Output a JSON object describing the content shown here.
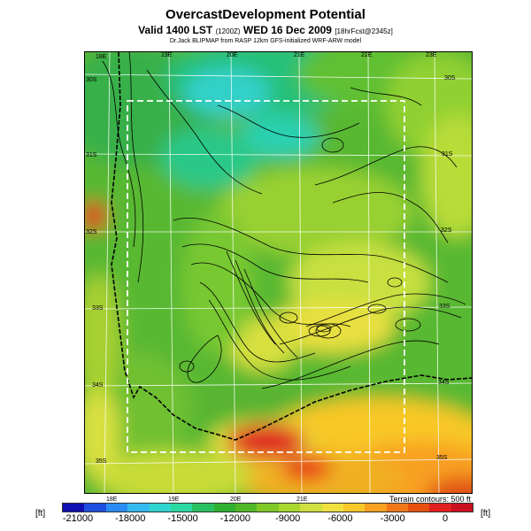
{
  "header": {
    "title": "OvercastDevelopment Potential",
    "valid_prefix": "Valid 1400 LST",
    "valid_code": "(1200Z)",
    "valid_date": "WED 16 Dec 2009",
    "run_info": "[18hrFcst@2345z]",
    "credit": "Dr.Jack BLIPMAP from RASP 12km GFS-initialized WRF-ARW model"
  },
  "map": {
    "lon_labels_top": [
      "18E",
      "19E",
      "20E",
      "21E",
      "22E",
      "23E"
    ],
    "lon_labels_bottom": [
      "18E",
      "19E",
      "20E",
      "21E"
    ],
    "lat_labels_left": [
      "30S",
      "31S",
      "32S",
      "33S",
      "34S",
      "35S"
    ],
    "lat_labels_right": [
      "30S",
      "31S",
      "32S",
      "33S",
      "34S",
      "35S"
    ],
    "terrain_note": "Terrain contours: 500 ft"
  },
  "colorbar": {
    "unit": "[ft]",
    "ticks": [
      "-21000",
      "-18000",
      "-15000",
      "-12000",
      "-9000",
      "-6000",
      "-3000",
      "0"
    ],
    "colors": [
      "#1010b0",
      "#1f4fe0",
      "#2a8cf0",
      "#34b8f0",
      "#30d4d0",
      "#2ad8a0",
      "#28c060",
      "#30b030",
      "#50b828",
      "#80c828",
      "#a8d830",
      "#d0e040",
      "#f0e040",
      "#f8c828",
      "#f8a020",
      "#f07818",
      "#e85010",
      "#e02020",
      "#c81020"
    ]
  }
}
